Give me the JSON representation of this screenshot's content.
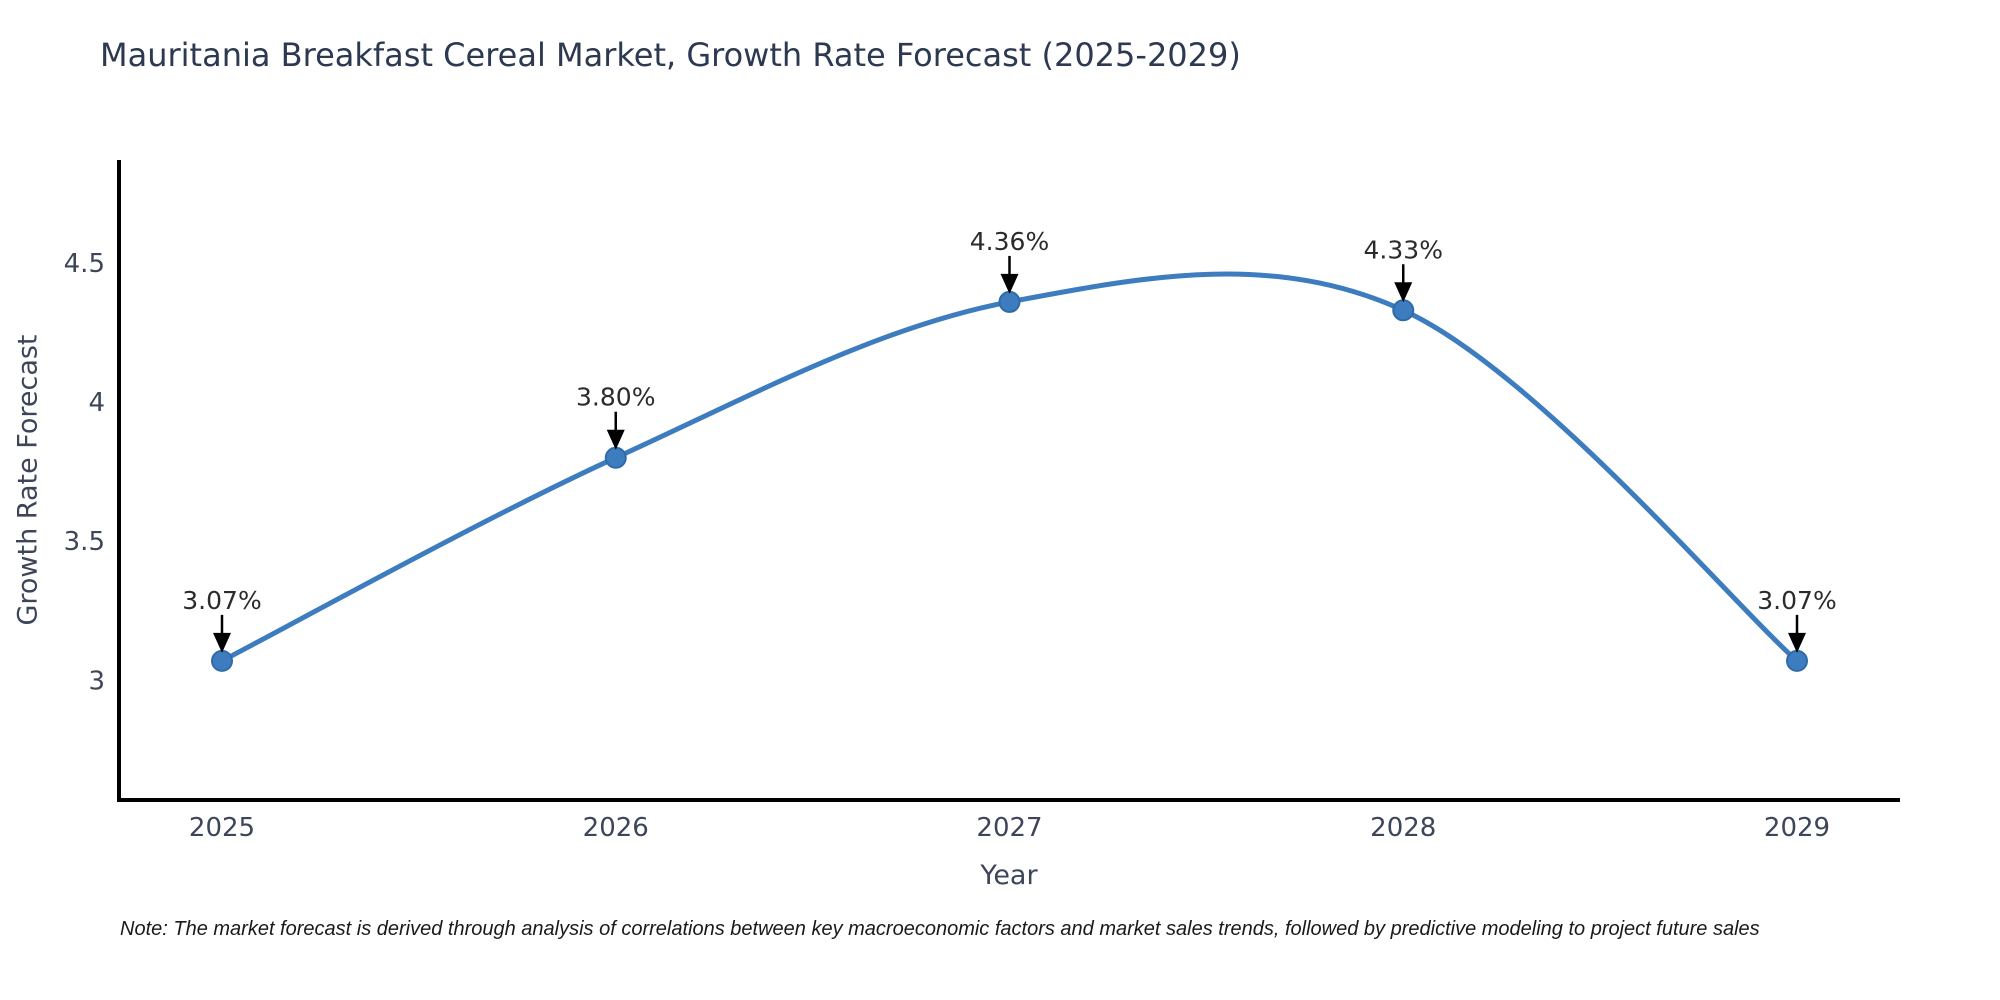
{
  "figure": {
    "note": "Note: The market forecast is derived through analysis of correlations between key macroeconomic factors and market sales trends, followed by predictive modeling to project future sales"
  },
  "chart_data": {
    "type": "line",
    "title": "Mauritania Breakfast Cereal Market, Growth Rate Forecast (2025-2029)",
    "xlabel": "Year",
    "ylabel": "Growth Rate Forecast",
    "categories": [
      "2025",
      "2026",
      "2027",
      "2028",
      "2029"
    ],
    "series": [
      {
        "name": "Growth Rate Forecast",
        "values": [
          3.07,
          3.8,
          4.36,
          4.33,
          3.07
        ]
      }
    ],
    "point_labels": [
      "3.07%",
      "3.80%",
      "4.36%",
      "4.33%",
      "3.07%"
    ],
    "ytick_labels": [
      "3",
      "3.5",
      "4",
      "4.5"
    ],
    "ytick_values": [
      3,
      3.5,
      4,
      4.5
    ],
    "ylim": [
      2.57,
      4.87
    ],
    "grid": false,
    "legend_visible": false,
    "smooth": true,
    "annotation_style": "label-above-with-down-arrow",
    "colors": {
      "line": "#3d7dbf",
      "marker": "#3d7dbf",
      "marker_edge": "#2f6ba8",
      "annotation_text": "#2b2b2b",
      "arrow": "#000000",
      "axis": "#000000",
      "tick_text": "#3d4659",
      "title_text": "#2c3950"
    }
  }
}
